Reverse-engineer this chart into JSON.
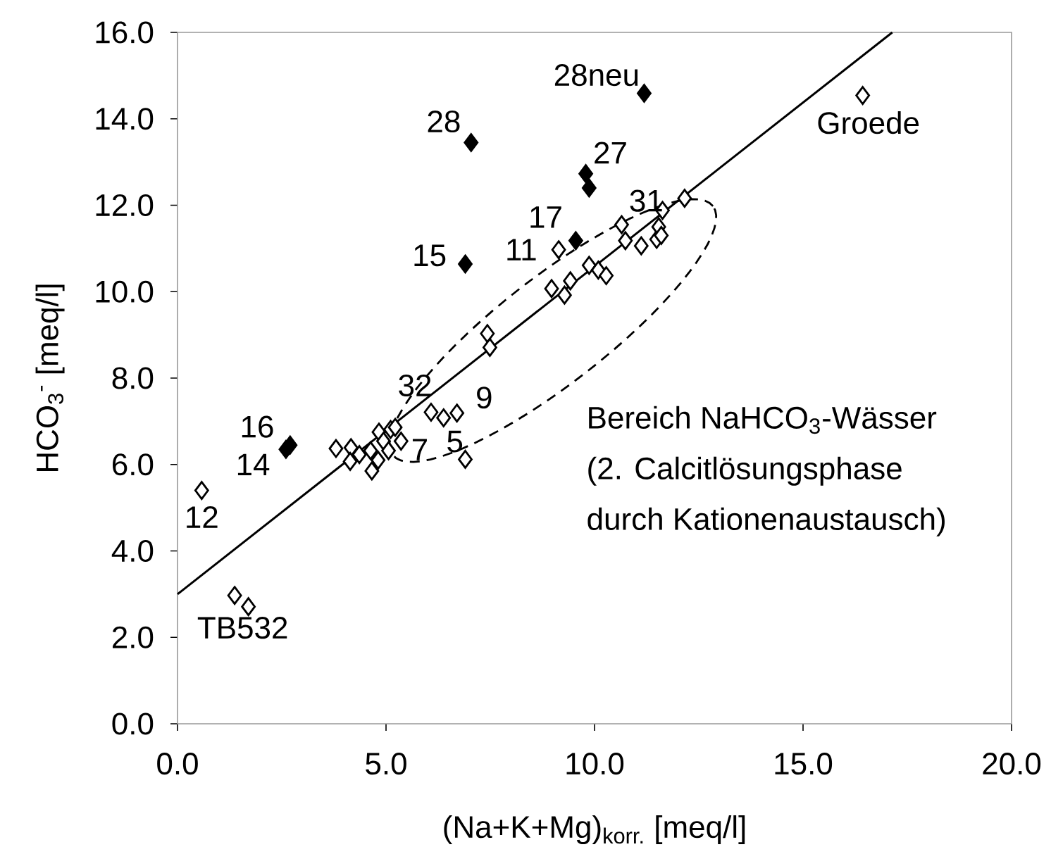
{
  "chart_data": {
    "type": "scatter",
    "xlabel": "(Na+K+Mg)$_{korr.}$ [meq/l]",
    "ylabel": "HCO$_{3}$$^{-}$ [meq/l]",
    "xlim": [
      0,
      20
    ],
    "ylim": [
      0,
      16
    ],
    "xticks": [
      {
        "value": 0,
        "label": "0.0"
      },
      {
        "value": 5,
        "label": "5.0"
      },
      {
        "value": 10,
        "label": "10.0"
      },
      {
        "value": 15,
        "label": "15.0"
      },
      {
        "value": 20,
        "label": "20.0"
      }
    ],
    "yticks": [
      {
        "value": 0,
        "label": "0.0"
      },
      {
        "value": 2,
        "label": "2.0"
      },
      {
        "value": 4,
        "label": "4.0"
      },
      {
        "value": 6,
        "label": "6.0"
      },
      {
        "value": 8,
        "label": "8.0"
      },
      {
        "value": 10,
        "label": "10.0"
      },
      {
        "value": 12,
        "label": "12.0"
      },
      {
        "value": 14,
        "label": "14.0"
      },
      {
        "value": 16,
        "label": "16.0"
      }
    ],
    "grid": false,
    "marker": "diamond",
    "series": [
      {
        "color": "#000000",
        "x": [
          0.58,
          1.37,
          1.7,
          3.8,
          4.16,
          4.14,
          4.36,
          4.66,
          4.63,
          4.81,
          4.83,
          4.94,
          5.11,
          5.22,
          5.36,
          5.06,
          6.08,
          6.38,
          6.7,
          6.9,
          7.43,
          7.49,
          8.97,
          9.28,
          9.42,
          9.87,
          10.09,
          10.28,
          9.14,
          10.65,
          10.74,
          11.12,
          11.49,
          11.63,
          11.54,
          11.6,
          12.16,
          16.43
        ],
        "values": [
          5.4,
          2.97,
          2.71,
          6.37,
          6.39,
          6.07,
          6.23,
          5.85,
          6.32,
          6.1,
          6.75,
          6.54,
          6.81,
          6.86,
          6.54,
          6.32,
          7.21,
          7.08,
          7.19,
          6.12,
          9.03,
          8.71,
          10.07,
          9.92,
          10.25,
          10.61,
          10.5,
          10.37,
          10.97,
          11.55,
          11.18,
          11.06,
          11.21,
          11.88,
          11.5,
          11.3,
          12.16,
          14.54
        ]
      },
      {
        "color": "#000000",
        "x": [
          2.6,
          2.7,
          6.9,
          7.04,
          9.55,
          9.79,
          9.87,
          11.19
        ],
        "values": [
          6.35,
          6.45,
          10.64,
          13.45,
          11.18,
          12.73,
          12.4,
          14.59
        ]
      },
      {
        "type": "line",
        "marker": "none",
        "color": "#000000",
        "x": [
          0,
          17.14
        ],
        "values": [
          3.0,
          16.0
        ]
      }
    ],
    "annotations": [
      {
        "text": "28neu",
        "x": 11.19,
        "y": 14.59
      },
      {
        "text": "28",
        "x": 7.04,
        "y": 13.45
      },
      {
        "text": "27",
        "x": 9.79,
        "y": 12.73
      },
      {
        "text": "17",
        "x": 9.55,
        "y": 11.18
      },
      {
        "text": "31",
        "x": 10.65,
        "y": 11.55
      },
      {
        "text": "15",
        "x": 6.9,
        "y": 10.64
      },
      {
        "text": "11",
        "x": 9.14,
        "y": 10.97
      },
      {
        "text": "16",
        "x": 2.7,
        "y": 6.45
      },
      {
        "text": "14",
        "x": 2.6,
        "y": 6.35
      },
      {
        "text": "12",
        "x": 0.58,
        "y": 5.4
      },
      {
        "text": "32",
        "x": 6.08,
        "y": 7.21
      },
      {
        "text": "9",
        "x": 6.7,
        "y": 7.19
      },
      {
        "text": "7",
        "x": 5.36,
        "y": 6.54
      },
      {
        "text": "5",
        "x": 6.38,
        "y": 7.08
      },
      {
        "text": "TB532",
        "x": 1.7,
        "y": 2.71
      },
      {
        "text": "Groede",
        "x": 16.43,
        "y": 14.54
      },
      "Bereich NaHCO$_{3}$-Wässer\n(2. Calcitlösungsphase\ndurch Kationenaustausch)"
    ]
  }
}
